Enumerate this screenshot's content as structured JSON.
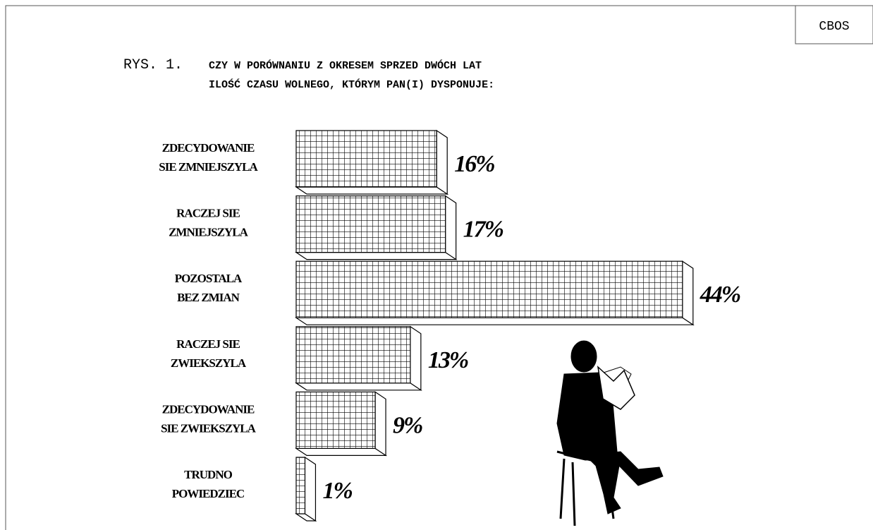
{
  "chart_data": {
    "type": "bar3d",
    "source": "CBOS",
    "figure_label": "RYS. 1.",
    "title": [
      "CZY W PORÓWNANIU Z OKRESEM SPRZED DWÓCH LAT",
      "ILOŚĆ CZASU WOLNEGO, KTÓRYM PAN(I) DYSPONUJE:"
    ],
    "categories": [
      [
        "ZDECYDOWANIE",
        "SIE ZMNIEJSZYLA"
      ],
      [
        "RACZEJ SIE",
        "ZMNIEJSZYLA"
      ],
      [
        "POZOSTALA",
        "BEZ ZMIAN"
      ],
      [
        "RACZEJ SIE",
        "ZWIEKSZYLA"
      ],
      [
        "ZDECYDOWANIE",
        "SIE ZWIEKSZYLA"
      ],
      [
        "TRUDNO",
        "POWIEDZIEC"
      ]
    ],
    "values": [
      16,
      17,
      44,
      13,
      9,
      1
    ],
    "value_labels": [
      "16%",
      "17%",
      "44%",
      "13%",
      "9%",
      "1%"
    ],
    "color": "#000000"
  }
}
